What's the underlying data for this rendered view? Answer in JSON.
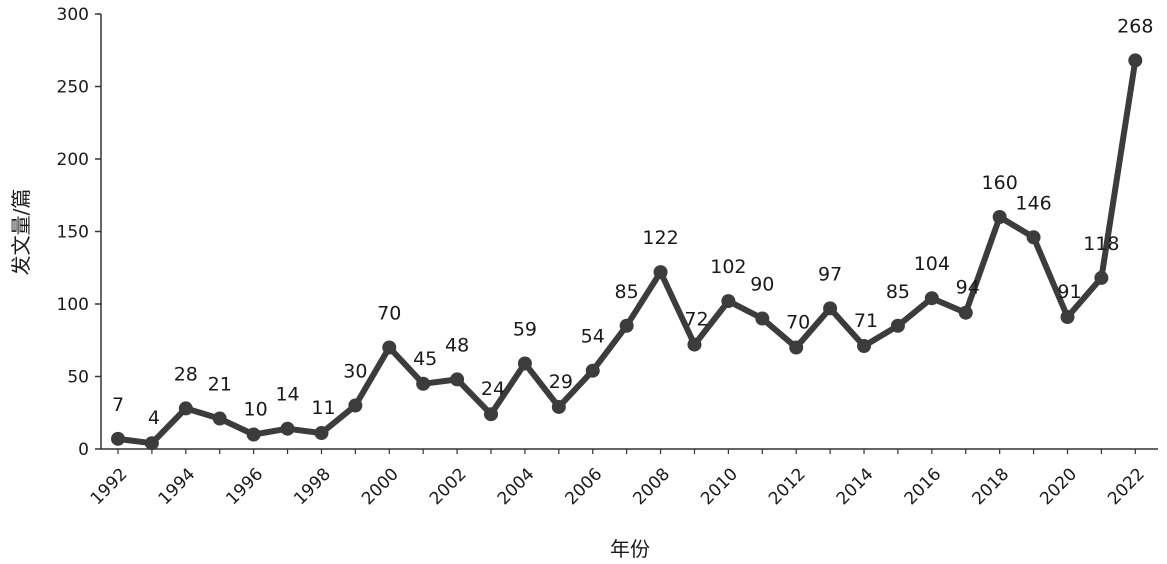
{
  "chart_data": {
    "type": "line",
    "title": "",
    "xlabel": "年份",
    "ylabel": "发文量/篇",
    "ylim": [
      0,
      300
    ],
    "yticks": [
      0,
      50,
      100,
      150,
      200,
      250,
      300
    ],
    "grid": false,
    "legend": "none",
    "x_tick_labels": [
      "1992",
      "1994",
      "1996",
      "1998",
      "2000",
      "2002",
      "2004",
      "2006",
      "2008",
      "2010",
      "2012",
      "2014",
      "2016",
      "2018",
      "2020",
      "2022"
    ],
    "categories": [
      "1992",
      "1993",
      "1994",
      "1995",
      "1996",
      "1997",
      "1998",
      "1999",
      "2000",
      "2001",
      "2002",
      "2003",
      "2004",
      "2005",
      "2006",
      "2007",
      "2008",
      "2009",
      "2010",
      "2011",
      "2012",
      "2013",
      "2014",
      "2015",
      "2016",
      "2017",
      "2018",
      "2019",
      "2020",
      "2021",
      "2022"
    ],
    "values": [
      7,
      4,
      28,
      21,
      10,
      14,
      11,
      30,
      70,
      45,
      48,
      24,
      59,
      29,
      54,
      85,
      122,
      72,
      102,
      90,
      70,
      97,
      71,
      85,
      104,
      94,
      160,
      146,
      91,
      118,
      268
    ],
    "line_color": "#3c3c3c"
  }
}
